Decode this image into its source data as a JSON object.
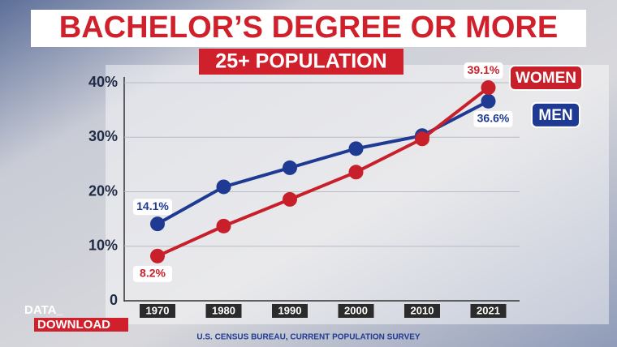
{
  "chart_data": {
    "type": "line",
    "title": "BACHELOR’S DEGREE OR MORE",
    "subtitle": "25+ POPULATION",
    "source": "U.S. CENSUS BUREAU, CURRENT POPULATION SURVEY",
    "categories": [
      "1970",
      "1980",
      "1990",
      "2000",
      "2010",
      "2021"
    ],
    "series": [
      {
        "name": "MEN",
        "color": "#1f3a93",
        "values": [
          14.1,
          20.9,
          24.4,
          27.9,
          30.3,
          36.6
        ],
        "value_labels": [
          "14.1%",
          null,
          null,
          null,
          null,
          "36.6%"
        ]
      },
      {
        "name": "WOMEN",
        "color": "#c8202a",
        "values": [
          8.2,
          13.7,
          18.6,
          23.6,
          29.7,
          39.1
        ],
        "value_labels": [
          "8.2%",
          null,
          null,
          null,
          null,
          "39.1%"
        ]
      }
    ],
    "ylim": [
      0,
      40
    ],
    "yticks": [
      0,
      {
        "value": 10,
        "label": "10%"
      },
      {
        "value": 20,
        "label": "20%"
      },
      {
        "value": 30,
        "label": "30%"
      },
      {
        "value": 40,
        "label": "40%"
      }
    ],
    "grid": true
  },
  "branding": {
    "line1": "DATA_",
    "line2": "DOWNLOAD"
  }
}
